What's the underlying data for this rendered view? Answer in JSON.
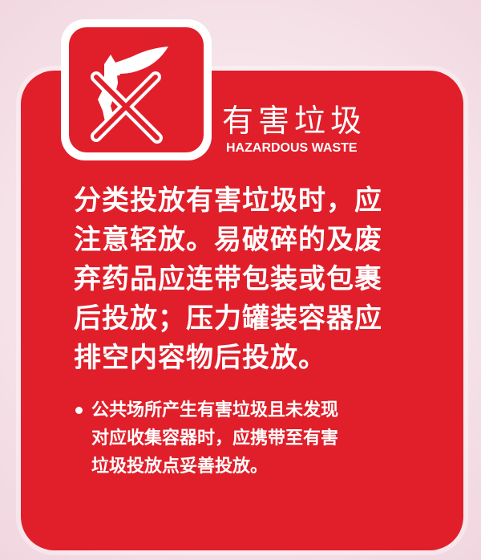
{
  "sign": {
    "title_cn": "有害垃圾",
    "title_en": "HAZARDOUS WASTE",
    "icon": "crossed-out-battery-plant-icon",
    "colors": {
      "panel": "#e01f2a",
      "text": "#ffffff",
      "background": "#f8eef2"
    }
  },
  "body": {
    "lines": [
      "分类投放有害垃圾时，应",
      "注意轻放。易破碎的及废",
      "弃药品应连带包装或包裹",
      "后投放；压力罐装容器应",
      "排空内容物后投放。"
    ]
  },
  "note": {
    "lines": [
      "公共场所产生有害垃圾且未发现",
      "对应收集容器时，应携带至有害",
      "垃圾投放点妥善投放。"
    ]
  }
}
